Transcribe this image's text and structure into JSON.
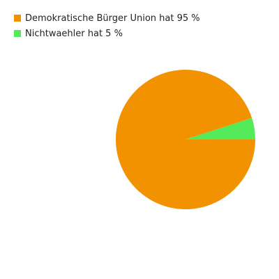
{
  "chart_data": {
    "type": "pie",
    "title": "",
    "legend_position": "top-left",
    "series": [
      {
        "name": "Demokratische Bürger Union",
        "value": 95,
        "color": "#f39200",
        "legend_label": "Demokratische Bürger Union hat 95 %"
      },
      {
        "name": "Nichtwaehler",
        "value": 5,
        "color": "#55ea5a",
        "legend_label": "Nichtwaehler hat 5 %"
      }
    ]
  }
}
